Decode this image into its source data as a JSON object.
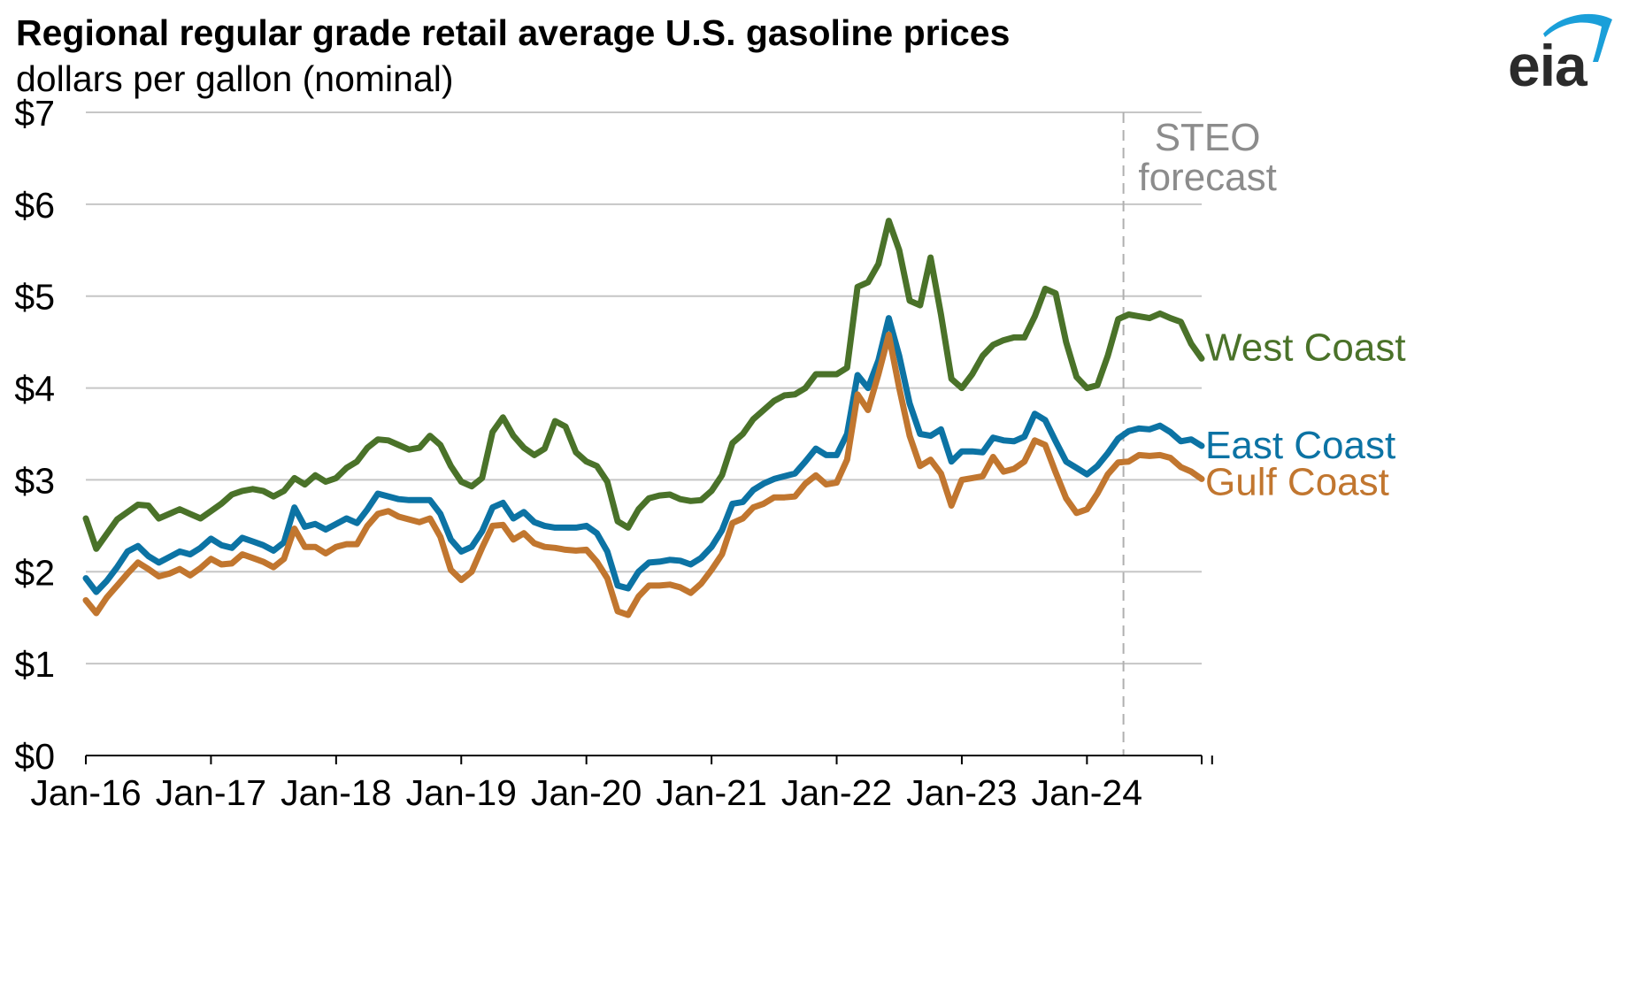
{
  "header": {
    "title": "Regional regular grade retail average U.S. gasoline prices",
    "subtitle": "dollars per gallon (nominal)",
    "logo_text": "eia"
  },
  "chart_data": {
    "type": "line",
    "title": "Regional regular grade retail average U.S. gasoline prices",
    "subtitle": "dollars per gallon (nominal)",
    "xlabel": "",
    "ylabel": "",
    "ylim": [
      0,
      7
    ],
    "y_ticks": [
      "$0",
      "$1",
      "$2",
      "$3",
      "$4",
      "$5",
      "$6",
      "$7"
    ],
    "x_tick_labels": [
      "Jan-16",
      "Jan-17",
      "Jan-18",
      "Jan-19",
      "Jan-20",
      "Jan-21",
      "Jan-22",
      "Jan-23",
      "Jan-24"
    ],
    "x_start": "2016-01",
    "x_frequency": "monthly",
    "grid": "horizontal",
    "forecast_start": "2024-05",
    "forecast_label": [
      "STEO",
      "forecast"
    ],
    "series": [
      {
        "name": "West Coast",
        "color": "#4a7229",
        "values": [
          2.58,
          2.25,
          2.41,
          2.57,
          2.65,
          2.73,
          2.72,
          2.58,
          2.63,
          2.68,
          2.63,
          2.58,
          2.66,
          2.74,
          2.84,
          2.88,
          2.9,
          2.88,
          2.82,
          2.88,
          3.02,
          2.95,
          3.05,
          2.98,
          3.02,
          3.13,
          3.2,
          3.35,
          3.44,
          3.43,
          3.38,
          3.33,
          3.35,
          3.48,
          3.38,
          3.15,
          2.98,
          2.93,
          3.02,
          3.52,
          3.68,
          3.48,
          3.35,
          3.27,
          3.34,
          3.64,
          3.58,
          3.3,
          3.2,
          3.15,
          2.98,
          2.55,
          2.48,
          2.68,
          2.8,
          2.83,
          2.84,
          2.79,
          2.77,
          2.78,
          2.88,
          3.05,
          3.4,
          3.5,
          3.66,
          3.76,
          3.86,
          3.92,
          3.93,
          4.0,
          4.15,
          4.15,
          4.15,
          4.22,
          5.1,
          5.15,
          5.35,
          5.82,
          5.5,
          4.95,
          4.9,
          5.42,
          4.8,
          4.1,
          4.0,
          4.15,
          4.35,
          4.47,
          4.52,
          4.55,
          4.55,
          4.78,
          5.08,
          5.03,
          4.5,
          4.12,
          4.0,
          4.03,
          4.35,
          4.75,
          4.8,
          4.78,
          4.76,
          4.81,
          4.76,
          4.72,
          4.48,
          4.32
        ]
      },
      {
        "name": "East Coast",
        "color": "#0c73a4",
        "values": [
          1.93,
          1.78,
          1.9,
          2.05,
          2.22,
          2.28,
          2.17,
          2.1,
          2.16,
          2.22,
          2.19,
          2.26,
          2.36,
          2.29,
          2.26,
          2.37,
          2.33,
          2.29,
          2.23,
          2.32,
          2.7,
          2.49,
          2.52,
          2.46,
          2.52,
          2.58,
          2.53,
          2.68,
          2.85,
          2.82,
          2.79,
          2.78,
          2.78,
          2.78,
          2.63,
          2.35,
          2.22,
          2.27,
          2.44,
          2.7,
          2.75,
          2.58,
          2.65,
          2.54,
          2.5,
          2.48,
          2.48,
          2.48,
          2.5,
          2.42,
          2.22,
          1.85,
          1.82,
          2.0,
          2.1,
          2.11,
          2.13,
          2.12,
          2.08,
          2.15,
          2.27,
          2.45,
          2.74,
          2.76,
          2.89,
          2.96,
          3.01,
          3.04,
          3.07,
          3.2,
          3.34,
          3.27,
          3.27,
          3.5,
          4.14,
          4.0,
          4.3,
          4.76,
          4.35,
          3.83,
          3.5,
          3.48,
          3.55,
          3.2,
          3.31,
          3.31,
          3.3,
          3.46,
          3.43,
          3.42,
          3.47,
          3.72,
          3.65,
          3.42,
          3.2,
          3.13,
          3.06,
          3.15,
          3.29,
          3.45,
          3.53,
          3.56,
          3.55,
          3.59,
          3.52,
          3.42,
          3.44,
          3.37
        ]
      },
      {
        "name": "Gulf Coast",
        "color": "#c1762f",
        "values": [
          1.69,
          1.55,
          1.72,
          1.85,
          1.98,
          2.1,
          2.03,
          1.95,
          1.98,
          2.03,
          1.96,
          2.04,
          2.14,
          2.08,
          2.09,
          2.19,
          2.15,
          2.11,
          2.05,
          2.14,
          2.47,
          2.27,
          2.27,
          2.2,
          2.27,
          2.3,
          2.3,
          2.5,
          2.63,
          2.66,
          2.6,
          2.57,
          2.54,
          2.58,
          2.38,
          2.02,
          1.91,
          2.0,
          2.26,
          2.5,
          2.51,
          2.35,
          2.42,
          2.31,
          2.27,
          2.26,
          2.24,
          2.23,
          2.24,
          2.11,
          1.93,
          1.57,
          1.53,
          1.73,
          1.85,
          1.85,
          1.86,
          1.83,
          1.77,
          1.87,
          2.02,
          2.19,
          2.53,
          2.58,
          2.7,
          2.74,
          2.81,
          2.81,
          2.82,
          2.96,
          3.05,
          2.95,
          2.97,
          3.22,
          3.93,
          3.76,
          4.15,
          4.58,
          4.0,
          3.48,
          3.15,
          3.22,
          3.07,
          2.72,
          3.0,
          3.02,
          3.04,
          3.25,
          3.09,
          3.12,
          3.2,
          3.43,
          3.38,
          3.08,
          2.8,
          2.64,
          2.68,
          2.85,
          3.06,
          3.19,
          3.2,
          3.27,
          3.26,
          3.27,
          3.24,
          3.14,
          3.09,
          3.01
        ]
      }
    ]
  }
}
